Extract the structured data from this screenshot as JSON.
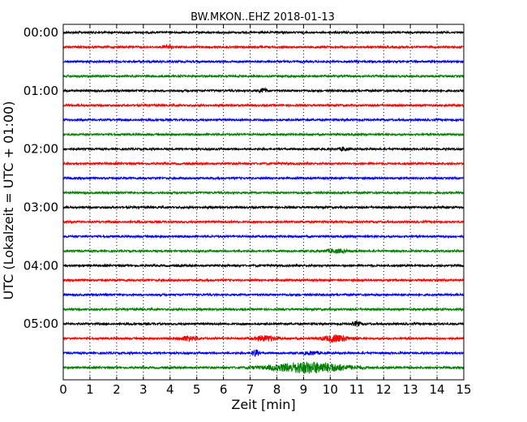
{
  "chart_data": {
    "type": "line",
    "title": "BW.MKON..EHZ 2018-01-13",
    "xlabel": "Zeit  [min]",
    "ylabel": "UTC (Lokalzeit = UTC + 01:00)",
    "xlim": [
      0,
      15
    ],
    "x_ticks": [
      "0",
      "1",
      "2",
      "3",
      "4",
      "5",
      "6",
      "7",
      "8",
      "9",
      "10",
      "11",
      "12",
      "13",
      "14",
      "15"
    ],
    "y_tick_labels": [
      "00:00",
      "01:00",
      "02:00",
      "03:00",
      "04:00",
      "05:00"
    ],
    "traces_per_hour": 4,
    "grid": "vertical dotted",
    "series": [
      {
        "offset_min": 0,
        "color": "#000000"
      },
      {
        "offset_min": 15,
        "color": "#ff0000",
        "events": [
          {
            "t": 3.9,
            "amp": 2.5,
            "w": 0.15
          }
        ]
      },
      {
        "offset_min": 30,
        "color": "#0000ff"
      },
      {
        "offset_min": 45,
        "color": "#008000"
      },
      {
        "offset_min": 60,
        "color": "#000000",
        "events": [
          {
            "t": 7.5,
            "amp": 2.5,
            "w": 0.15
          }
        ]
      },
      {
        "offset_min": 75,
        "color": "#ff0000"
      },
      {
        "offset_min": 90,
        "color": "#0000ff"
      },
      {
        "offset_min": 105,
        "color": "#008000"
      },
      {
        "offset_min": 120,
        "color": "#000000",
        "events": [
          {
            "t": 10.5,
            "amp": 2.0,
            "w": 0.15
          }
        ]
      },
      {
        "offset_min": 135,
        "color": "#ff0000"
      },
      {
        "offset_min": 150,
        "color": "#0000ff"
      },
      {
        "offset_min": 165,
        "color": "#008000"
      },
      {
        "offset_min": 180,
        "color": "#000000"
      },
      {
        "offset_min": 195,
        "color": "#ff0000"
      },
      {
        "offset_min": 210,
        "color": "#0000ff"
      },
      {
        "offset_min": 225,
        "color": "#008000",
        "events": [
          {
            "t": 10.2,
            "amp": 2.0,
            "w": 0.4
          }
        ]
      },
      {
        "offset_min": 240,
        "color": "#000000"
      },
      {
        "offset_min": 255,
        "color": "#ff0000"
      },
      {
        "offset_min": 270,
        "color": "#0000ff"
      },
      {
        "offset_min": 285,
        "color": "#008000"
      },
      {
        "offset_min": 300,
        "color": "#000000",
        "events": [
          {
            "t": 11.0,
            "amp": 2.5,
            "w": 0.15
          }
        ]
      },
      {
        "offset_min": 315,
        "color": "#ff0000",
        "events": [
          {
            "t": 4.7,
            "amp": 3.0,
            "w": 0.3
          },
          {
            "t": 7.6,
            "amp": 3.0,
            "w": 0.4
          },
          {
            "t": 10.2,
            "amp": 4.0,
            "w": 0.5
          }
        ]
      },
      {
        "offset_min": 330,
        "color": "#0000ff",
        "events": [
          {
            "t": 7.2,
            "amp": 4.0,
            "w": 0.12
          },
          {
            "t": 9.3,
            "amp": 1.8,
            "w": 0.3
          }
        ]
      },
      {
        "offset_min": 345,
        "color": "#008000",
        "events": [
          {
            "t": 9.2,
            "amp": 6.5,
            "w": 1.4
          }
        ]
      }
    ]
  }
}
